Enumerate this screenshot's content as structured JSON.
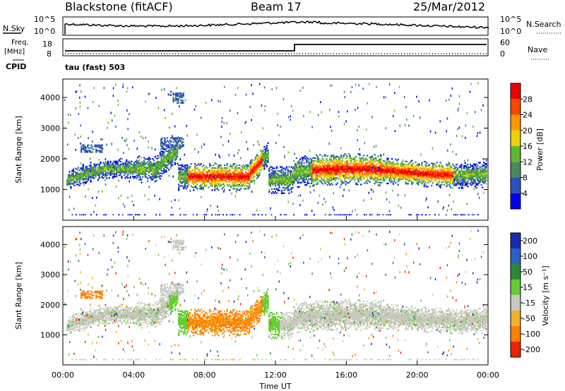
{
  "header": {
    "station": "Blackstone (fitACF)",
    "beam": "Beam 17",
    "date": "25/Mar/2012"
  },
  "noise_panel": {
    "left_label": "N.Sky",
    "right_label": "N.Search",
    "left_ticks": [
      "10^5",
      "10^0"
    ],
    "right_ticks": [
      "10^5",
      "10^0"
    ]
  },
  "freq_panel": {
    "left_label_line1": "Freq.",
    "left_label_line2": "[MHz]",
    "left_ticks": [
      "18",
      "8"
    ],
    "right_label": "Nave",
    "right_ticks": [
      "60",
      "0"
    ],
    "cpid_label": "CPID",
    "cpid_value": "tau (fast) 503"
  },
  "chart_data": [
    {
      "type": "heatmap",
      "name": "power",
      "ylabel": "Slant Range [km]",
      "ylim": [
        0,
        4600
      ],
      "yticks": [
        "1000",
        "2000",
        "3000",
        "4000"
      ],
      "colorbar_label": "Power [dB]",
      "colorbar_ticks": [
        "4",
        "8",
        "12",
        "16",
        "20",
        "24",
        "28"
      ],
      "colors": [
        "#0000ee",
        "#2a52be",
        "#4a8a5a",
        "#5cb832",
        "#f0d000",
        "#ff9900",
        "#ff4400",
        "#ee0000"
      ]
    },
    {
      "type": "heatmap",
      "name": "velocity",
      "ylabel": "Slant Range [km]",
      "ylim": [
        0,
        4600
      ],
      "yticks": [
        "1000",
        "2000",
        "3000",
        "4000"
      ],
      "colorbar_label": "Velocity [m s⁻¹]",
      "colorbar_ticks": [
        "200",
        "100",
        "50",
        "15",
        "-15",
        "-50",
        "-100",
        "-200"
      ],
      "colors": [
        "#1a2ab0",
        "#2a62c4",
        "#2a8a3a",
        "#66cc33",
        "#c8c8c0",
        "#f0b030",
        "#ff8000",
        "#ee2200"
      ],
      "xlabel": "Time UT",
      "xticks": [
        "00:00",
        "04:00",
        "08:00",
        "12:00",
        "16:00",
        "20:00",
        "00:00"
      ]
    }
  ]
}
